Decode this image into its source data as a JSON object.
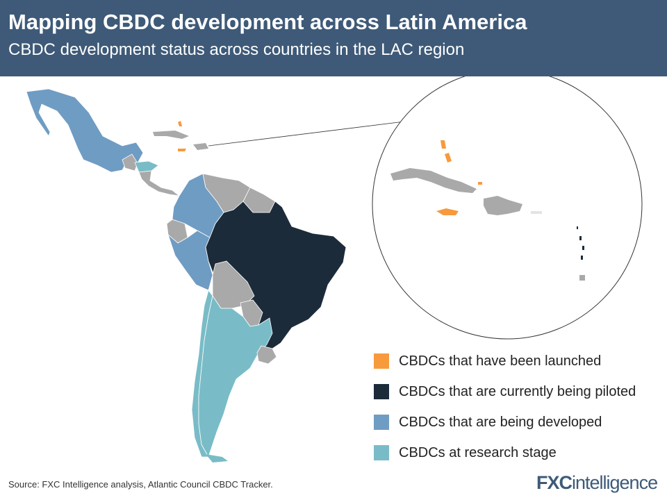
{
  "header": {
    "title": "Mapping CBDC development across Latin America",
    "subtitle": "CBDC development status across countries in the LAC region"
  },
  "colors": {
    "launched": "#f79a3e",
    "piloted": "#1c2b3a",
    "developed": "#6f9cc3",
    "research": "#79bcc7",
    "none": "#a9a9a9",
    "header_bg": "#3e5a78"
  },
  "legend": [
    {
      "label": "CBDCs that have been launched",
      "color": "#f79a3e"
    },
    {
      "label": "CBDCs that are currently being piloted",
      "color": "#1c2b3a"
    },
    {
      "label": "CBDCs that are being developed",
      "color": "#6f9cc3"
    },
    {
      "label": "CBDCs at research stage",
      "color": "#79bcc7"
    }
  ],
  "footer": {
    "source": "Source: FXC Intelligence analysis, Atlantic Council CBDC Tracker.",
    "logo_main": "FXC",
    "logo_sub": "intelligence"
  }
}
